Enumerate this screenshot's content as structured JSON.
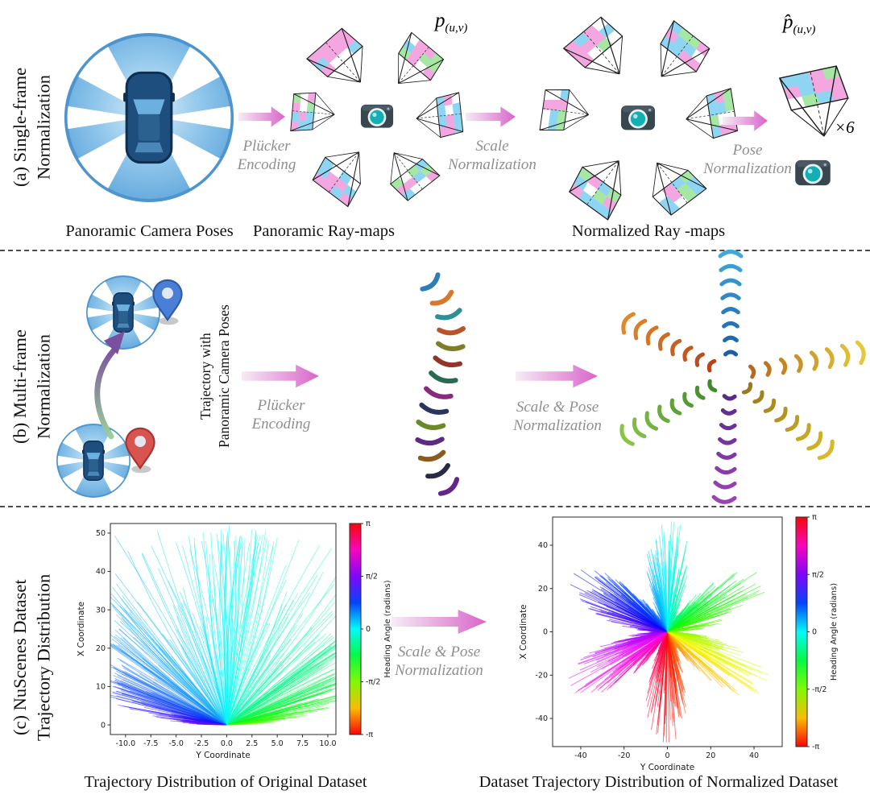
{
  "figure": {
    "checker_palette": [
      "#f4a6e0",
      "#a5e7a3",
      "#8ed5f4",
      "#ffffff",
      "#f4a6e0",
      "#a5e7a3",
      "#8ed5f4",
      "#ffffff"
    ],
    "arrow_gradient": [
      "#f6ecf5",
      "#d964ca"
    ],
    "row_a": {
      "side_label_line1": "(a) Single-frame",
      "side_label_line2": "Normalization",
      "caption_poses": "Panoramic Camera Poses",
      "caption_raymaps": "Panoramic Ray-maps",
      "caption_normalized": "Normalized Ray -maps",
      "arrow1_line1": "Plücker",
      "arrow1_line2": "Encoding",
      "arrow2_line1": "Scale",
      "arrow2_line2": "Normalization",
      "arrow3_line1": "Pose",
      "arrow3_line2": "Normalization",
      "raymap_label_base": "p",
      "raymap_label_sub": "(u,v)",
      "normalized_label_base": "p̂",
      "normalized_label_sub": "(u,v)",
      "multiplicity": "×6"
    },
    "row_b": {
      "side_label_line1": "(b) Multi-frame",
      "side_label_line2": "Normalization",
      "traj_label_line1": "Trajectory with",
      "traj_label_line2": "Panoramic Camera Poses",
      "arrow1_line1": "Plücker",
      "arrow1_line2": "Encoding",
      "arrow2_line1": "Scale & Pose",
      "arrow2_line2": "Normalization",
      "chain_colors": [
        "#2d7dbb",
        "#d8772e",
        "#2e8f96",
        "#b8542a",
        "#7d7d2a",
        "#93352b",
        "#2a6a55",
        "#8a2a7a",
        "#28355e",
        "#6a8a2a",
        "#5a2a85",
        "#8a5a1e",
        "#2a2a44",
        "#62258c"
      ],
      "star_chain_colors": {
        "up": [
          "#1a5fa8",
          "#3fa8dc"
        ],
        "right": [
          "#b86a1a",
          "#e7c83a"
        ],
        "lower_right": [
          "#9a7a1a",
          "#d8b82a"
        ],
        "bottom": [
          "#5a2a8a",
          "#9a44b4"
        ],
        "lower_left": [
          "#3f8a28",
          "#8cc24a"
        ],
        "upper_left": [
          "#b8431a",
          "#dc8a2a"
        ]
      }
    },
    "row_c": {
      "side_label_line1": "(c) NuScenes Dataset",
      "side_label_line2": "Trajectory Distribution",
      "arrow_line1": "Scale & Pose",
      "arrow_line2": "Normalization",
      "caption_left": "Trajectory Distribution of Original Dataset",
      "caption_right": "Dataset Trajectory Distribution of Normalized Dataset"
    }
  },
  "chart_data": [
    {
      "id": "original-trajectories",
      "type": "line-fan",
      "title": "",
      "xlabel": "Y Coordinate",
      "ylabel": "X Coordinate",
      "xlim": [
        -11.5,
        10.8
      ],
      "ylim": [
        -2.5,
        52.5
      ],
      "xticks": [
        -10.0,
        -7.5,
        -5.0,
        -2.5,
        0.0,
        2.5,
        5.0,
        7.5,
        10.0
      ],
      "xtick_labels": [
        "-10.0",
        "-7.5",
        "-5.0",
        "-2.5",
        "0.0",
        "2.5",
        "5.0",
        "7.5",
        "10.0"
      ],
      "yticks": [
        0,
        10,
        20,
        30,
        40,
        50
      ],
      "ytick_labels": [
        "0",
        "10",
        "20",
        "30",
        "40",
        "50"
      ],
      "colorbar": {
        "label": "Heading Angle (radians)",
        "tick_labels": [
          "π",
          "π/2",
          "0",
          "-π/2",
          "-π"
        ],
        "hue_top_deg": 360,
        "hue_bottom_deg": 0
      },
      "render_params": {
        "rays": 430,
        "heading_range_rad": [
          -1.52,
          1.52
        ],
        "max_length": 51,
        "origin": [
          0,
          0
        ],
        "hue_formula": "180 + heading_deg"
      }
    },
    {
      "id": "normalized-trajectories",
      "type": "line-star",
      "title": "",
      "xlabel": "Y Coordinate",
      "ylabel": "X Coordinate",
      "xlim": [
        -53,
        53
      ],
      "ylim": [
        -53,
        53
      ],
      "xticks": [
        -40,
        -20,
        0,
        20,
        40
      ],
      "xtick_labels": [
        "-40",
        "-20",
        "0",
        "20",
        "40"
      ],
      "yticks": [
        -40,
        -20,
        0,
        20,
        40
      ],
      "ytick_labels": [
        "-40",
        "-20",
        "0",
        "20",
        "40"
      ],
      "colorbar": {
        "label": "Heading Angle (radians)",
        "tick_labels": [
          "π",
          "π/2",
          "0",
          "-π/2",
          "-π"
        ],
        "hue_top_deg": 360,
        "hue_bottom_deg": 0
      },
      "render_params": {
        "rays": 780,
        "petals": 6,
        "max_length": 51,
        "origin": [
          0,
          0
        ],
        "hue_formula": "180 + heading_deg"
      }
    }
  ]
}
